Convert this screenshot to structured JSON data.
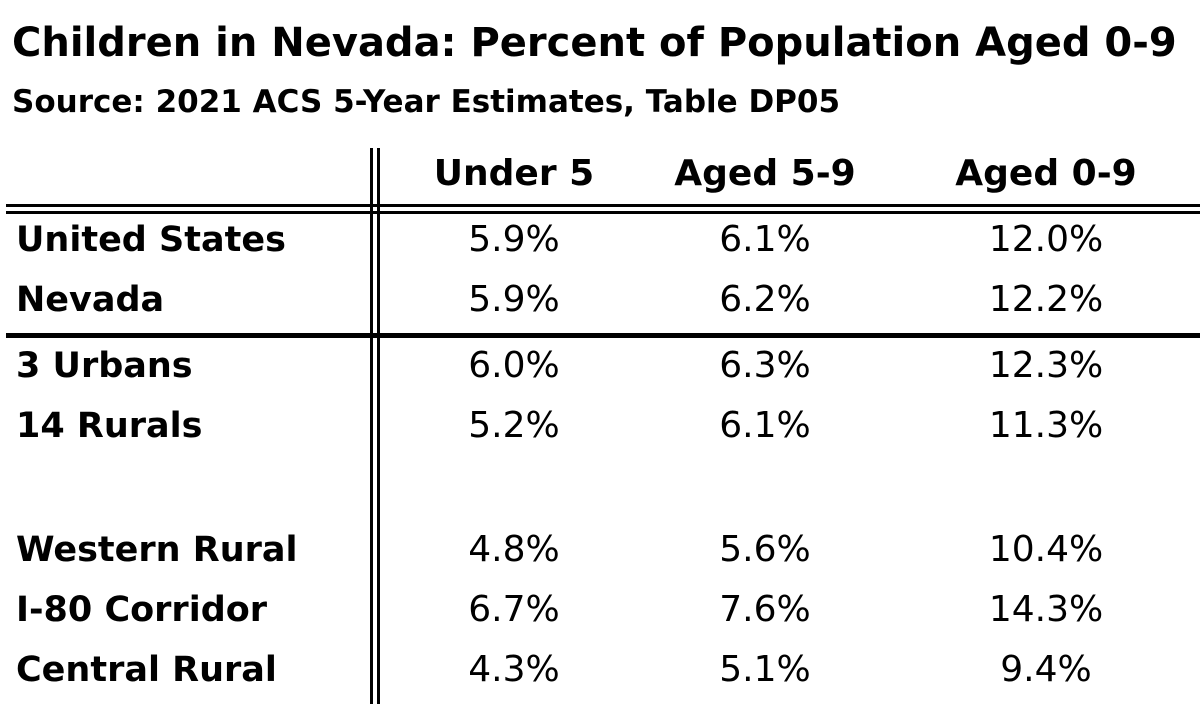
{
  "chart_data": {
    "type": "table",
    "title": "Children in Nevada: Percent of Population Aged 0-9",
    "subtitle": "Source: 2021 ACS 5-Year Estimates, Table DP05",
    "columns": [
      "Under 5",
      "Aged 5-9",
      "Aged 0-9"
    ],
    "rows": [
      {
        "label": "United States",
        "values": [
          "5.9%",
          "6.1%",
          "12.0%"
        ]
      },
      {
        "label": "Nevada",
        "values": [
          "5.9%",
          "6.2%",
          "12.2%"
        ]
      },
      {
        "label": "3 Urbans",
        "values": [
          "6.0%",
          "6.3%",
          "12.3%"
        ]
      },
      {
        "label": "14 Rurals",
        "values": [
          "5.2%",
          "6.1%",
          "11.3%"
        ]
      },
      {
        "label": "Western Rural",
        "values": [
          "4.8%",
          "5.6%",
          "10.4%"
        ]
      },
      {
        "label": "I-80 Corridor",
        "values": [
          "6.7%",
          "7.6%",
          "14.3%"
        ]
      },
      {
        "label": "Central Rural",
        "values": [
          "4.3%",
          "5.1%",
          "9.4%"
        ]
      }
    ]
  }
}
